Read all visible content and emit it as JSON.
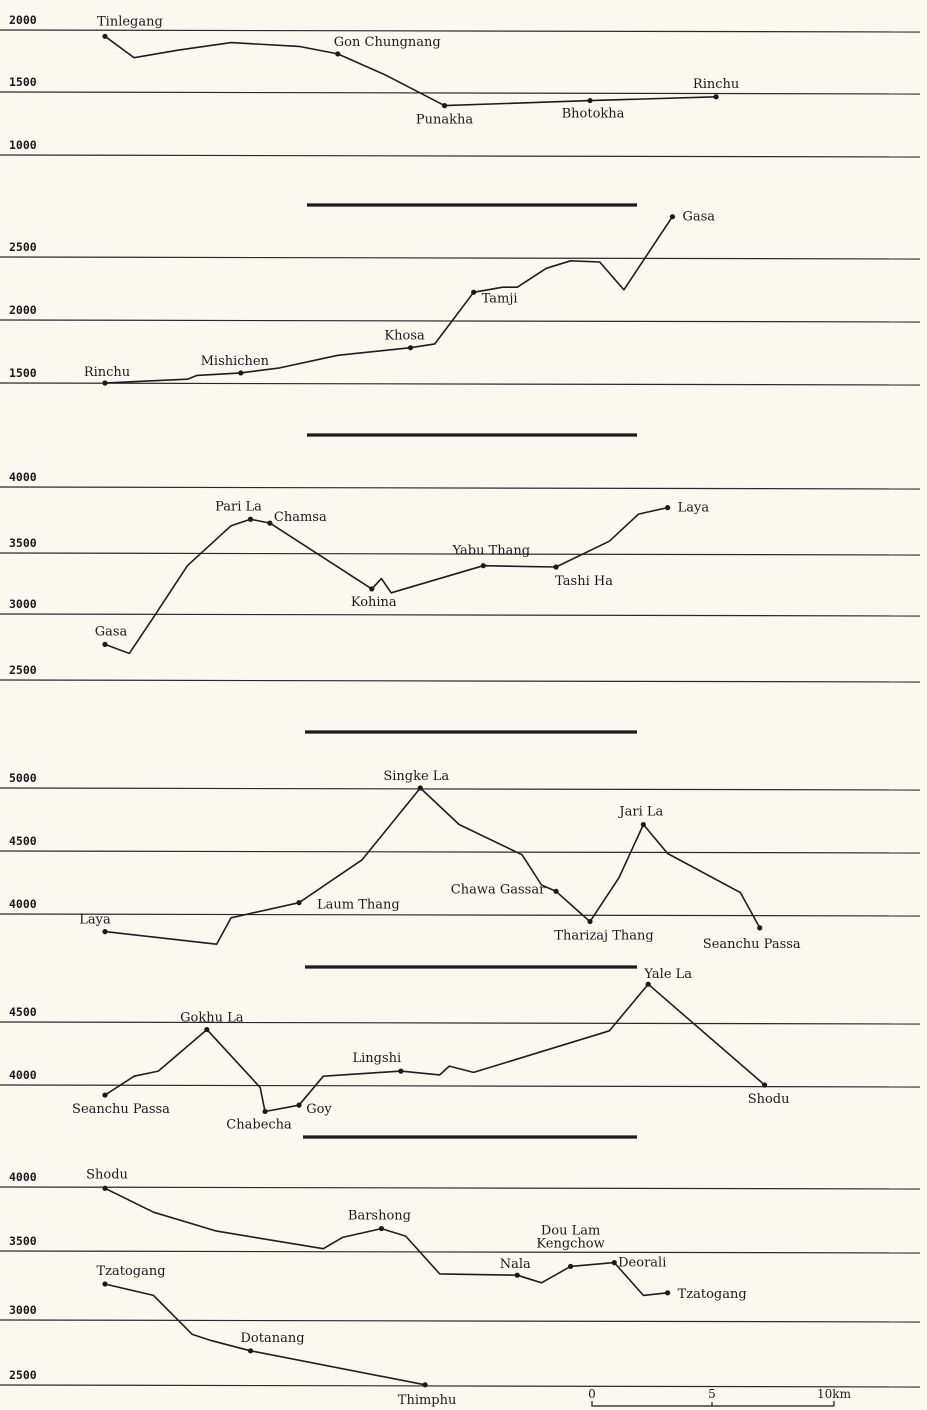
{
  "chart_data": [
    {
      "type": "line",
      "y_ticks": [
        2000,
        1500,
        1000
      ],
      "points": [
        {
          "x": 0.0,
          "y": 1950,
          "label": "Tinlegang"
        },
        {
          "x": 0.6,
          "y": 1780
        },
        {
          "x": 1.5,
          "y": 1840
        },
        {
          "x": 2.6,
          "y": 1900
        },
        {
          "x": 4.0,
          "y": 1870
        },
        {
          "x": 4.8,
          "y": 1810,
          "label": "Gon Chungnang"
        },
        {
          "x": 5.8,
          "y": 1640
        },
        {
          "x": 7.0,
          "y": 1400,
          "label": "Punakha"
        },
        {
          "x": 10.0,
          "y": 1440,
          "label": "Bhotokha"
        },
        {
          "x": 12.6,
          "y": 1470,
          "label": "Rinchu"
        }
      ]
    },
    {
      "type": "line",
      "y_ticks": [
        2500,
        2000,
        1500
      ],
      "points": [
        {
          "x": 0.0,
          "y": 1500,
          "label": "Rinchu"
        },
        {
          "x": 1.7,
          "y": 1530
        },
        {
          "x": 1.9,
          "y": 1560
        },
        {
          "x": 2.8,
          "y": 1580,
          "label": "Mishichen"
        },
        {
          "x": 3.6,
          "y": 1620
        },
        {
          "x": 4.8,
          "y": 1720
        },
        {
          "x": 6.3,
          "y": 1780,
          "label": "Khosa"
        },
        {
          "x": 6.8,
          "y": 1810
        },
        {
          "x": 7.6,
          "y": 2220,
          "label": "Tamji"
        },
        {
          "x": 8.2,
          "y": 2260
        },
        {
          "x": 8.5,
          "y": 2260
        },
        {
          "x": 9.1,
          "y": 2410
        },
        {
          "x": 9.6,
          "y": 2470
        },
        {
          "x": 10.2,
          "y": 2460
        },
        {
          "x": 10.7,
          "y": 2240
        },
        {
          "x": 11.7,
          "y": 2820,
          "label": "Gasa"
        }
      ]
    },
    {
      "type": "line",
      "y_ticks": [
        4000,
        3500,
        3000,
        2500
      ],
      "points": [
        {
          "x": 0.0,
          "y": 2780,
          "label": "Gasa"
        },
        {
          "x": 0.5,
          "y": 2710
        },
        {
          "x": 1.0,
          "y": 2990
        },
        {
          "x": 1.7,
          "y": 3390
        },
        {
          "x": 2.6,
          "y": 3700
        },
        {
          "x": 3.0,
          "y": 3750,
          "label": "Pari La"
        },
        {
          "x": 3.4,
          "y": 3720,
          "label": "Chamsa"
        },
        {
          "x": 5.5,
          "y": 3210,
          "label": "Kohina"
        },
        {
          "x": 5.7,
          "y": 3290
        },
        {
          "x": 5.9,
          "y": 3180
        },
        {
          "x": 7.8,
          "y": 3390,
          "label": "Yabu Thang"
        },
        {
          "x": 9.3,
          "y": 3380,
          "label": "Tashi Ha"
        },
        {
          "x": 10.4,
          "y": 3580
        },
        {
          "x": 11.0,
          "y": 3790
        },
        {
          "x": 11.6,
          "y": 3840,
          "label": "Laya"
        }
      ]
    },
    {
      "type": "line",
      "y_ticks": [
        5000,
        4500,
        4000
      ],
      "points": [
        {
          "x": 0.0,
          "y": 3860,
          "label": "Laya"
        },
        {
          "x": 2.3,
          "y": 3760
        },
        {
          "x": 2.6,
          "y": 3970
        },
        {
          "x": 4.0,
          "y": 4090,
          "label": "Laum Thang"
        },
        {
          "x": 5.3,
          "y": 4430
        },
        {
          "x": 6.5,
          "y": 5000,
          "label": "Singke La"
        },
        {
          "x": 7.3,
          "y": 4710
        },
        {
          "x": 8.6,
          "y": 4470
        },
        {
          "x": 9.0,
          "y": 4230
        },
        {
          "x": 9.3,
          "y": 4180,
          "label": "Chawa Gassar"
        },
        {
          "x": 10.0,
          "y": 3940,
          "label": "Tharizaj Thang"
        },
        {
          "x": 10.6,
          "y": 4290
        },
        {
          "x": 11.1,
          "y": 4710,
          "label": "Jari La"
        },
        {
          "x": 11.6,
          "y": 4480
        },
        {
          "x": 13.1,
          "y": 4170
        },
        {
          "x": 13.5,
          "y": 3890,
          "label": "Seanchu Passa"
        }
      ]
    },
    {
      "type": "line",
      "y_ticks": [
        4500,
        4000
      ],
      "points": [
        {
          "x": 0.0,
          "y": 3920,
          "label": "Seanchu Passa"
        },
        {
          "x": 0.6,
          "y": 4070
        },
        {
          "x": 1.1,
          "y": 4110
        },
        {
          "x": 2.1,
          "y": 4440,
          "label": "Gokhu La"
        },
        {
          "x": 3.2,
          "y": 3980
        },
        {
          "x": 3.3,
          "y": 3790,
          "label": "Chabecha"
        },
        {
          "x": 4.0,
          "y": 3840,
          "label": "Goy"
        },
        {
          "x": 4.5,
          "y": 4070
        },
        {
          "x": 6.1,
          "y": 4110,
          "label": "Lingshi"
        },
        {
          "x": 6.9,
          "y": 4080
        },
        {
          "x": 7.1,
          "y": 4150
        },
        {
          "x": 7.6,
          "y": 4100
        },
        {
          "x": 10.4,
          "y": 4430
        },
        {
          "x": 11.2,
          "y": 4800,
          "label": "Yale La"
        },
        {
          "x": 13.6,
          "y": 4000,
          "label": "Shodu"
        }
      ]
    },
    {
      "type": "line",
      "y_ticks": [
        4000,
        3500,
        3000,
        2500
      ],
      "series": [
        {
          "points": [
            {
              "x": 0.0,
              "y": 3990,
              "label": "Shodu"
            },
            {
              "x": 1.0,
              "y": 3800
            },
            {
              "x": 2.3,
              "y": 3650
            },
            {
              "x": 4.5,
              "y": 3510
            },
            {
              "x": 4.9,
              "y": 3600
            },
            {
              "x": 5.7,
              "y": 3670,
              "label": "Barshong"
            },
            {
              "x": 6.2,
              "y": 3610
            },
            {
              "x": 6.9,
              "y": 3310
            },
            {
              "x": 8.5,
              "y": 3300,
              "label": "Nala"
            },
            {
              "x": 9.0,
              "y": 3240
            },
            {
              "x": 9.6,
              "y": 3370,
              "label": "Dou Lam Kengchow"
            },
            {
              "x": 10.5,
              "y": 3400,
              "label": "Deorali"
            },
            {
              "x": 11.1,
              "y": 3140
            },
            {
              "x": 11.6,
              "y": 3160,
              "label": "Tzatogang"
            }
          ]
        },
        {
          "points": [
            {
              "x": 0.0,
              "y": 3230,
              "label": "Tzatogang"
            },
            {
              "x": 1.0,
              "y": 3140
            },
            {
              "x": 1.8,
              "y": 2830
            },
            {
              "x": 2.2,
              "y": 2780
            },
            {
              "x": 3.0,
              "y": 2700,
              "label": "Dotanang"
            },
            {
              "x": 6.6,
              "y": 2430,
              "label": "Thimphu"
            }
          ]
        }
      ]
    }
  ],
  "scale": {
    "ticks": [
      "0",
      "5",
      "10km"
    ]
  }
}
